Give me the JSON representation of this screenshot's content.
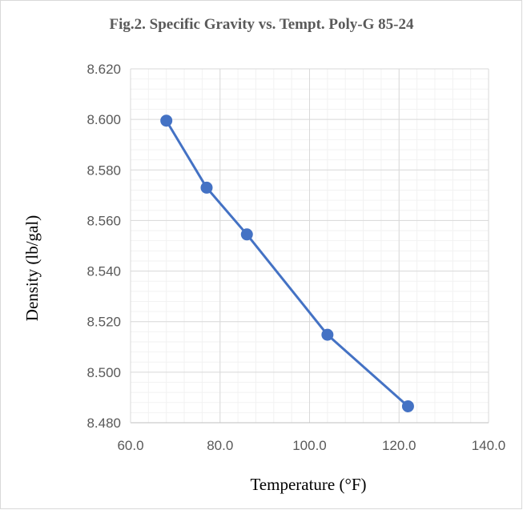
{
  "chart_data": {
    "type": "line",
    "title": "Fig.2. Specific Gravity vs. Tempt. Poly-G 85-24",
    "xlabel": "Temperature (°F)",
    "ylabel": "Density (lb/gal)",
    "xlim": [
      60.0,
      140.0
    ],
    "ylim": [
      8.48,
      8.62
    ],
    "x_ticks": [
      60,
      80,
      100,
      120,
      140
    ],
    "x_tick_labels": [
      "60.0",
      "80.0",
      "100.0",
      "120.0",
      "140.0"
    ],
    "y_ticks": [
      8.48,
      8.5,
      8.52,
      8.54,
      8.56,
      8.58,
      8.6,
      8.62
    ],
    "y_tick_labels": [
      "8.480",
      "8.500",
      "8.520",
      "8.540",
      "8.560",
      "8.580",
      "8.600",
      "8.620"
    ],
    "grid": true,
    "legend": "none",
    "series": [
      {
        "x": [
          68,
          77,
          86,
          104,
          122
        ],
        "y": [
          8.5995,
          8.573,
          8.5545,
          8.5148,
          8.4865
        ],
        "color": "#4472c4"
      }
    ]
  }
}
